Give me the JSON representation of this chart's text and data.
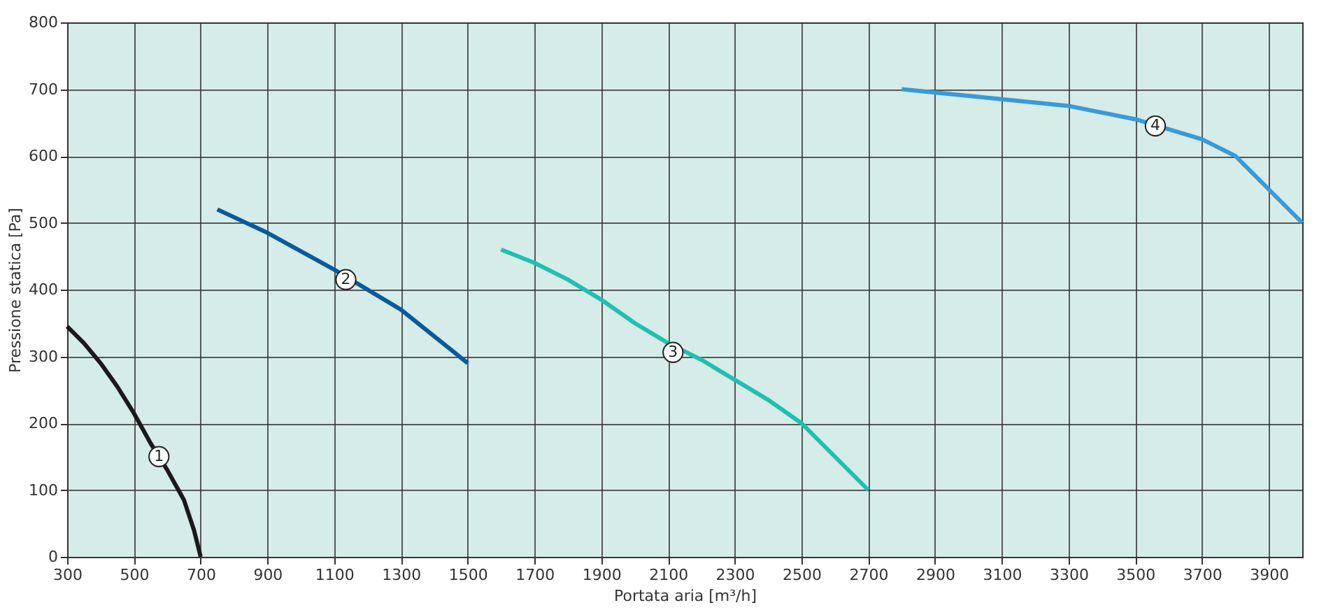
{
  "chart_data": {
    "type": "line",
    "xlabel": "Portata aria [m³/h]",
    "ylabel": "Pressione statica [Pa]",
    "xlim": [
      300,
      4000
    ],
    "xticks": [
      300,
      500,
      700,
      900,
      1100,
      1300,
      1500,
      1700,
      1900,
      2100,
      2300,
      2500,
      2700,
      2900,
      3100,
      3300,
      3500,
      3700,
      3900
    ],
    "ylim": [
      0,
      800
    ],
    "yticks": [
      0,
      100,
      200,
      300,
      400,
      500,
      600,
      700,
      800
    ],
    "grid": true,
    "legend": false,
    "marker": "none",
    "line_style": "solid",
    "series": [
      {
        "color": "#1a1a1a",
        "x": [
          300,
          350,
          400,
          450,
          500,
          550,
          600,
          650,
          680,
          700
        ],
        "values": [
          345,
          320,
          290,
          255,
          215,
          170,
          130,
          85,
          40,
          0
        ]
      },
      {
        "color": "#0a5a9c",
        "x": [
          750,
          900,
          1100,
          1300,
          1400,
          1500
        ],
        "values": [
          520,
          485,
          430,
          370,
          330,
          290
        ]
      },
      {
        "color": "#20c0b0",
        "x": [
          1600,
          1700,
          1800,
          1900,
          2000,
          2100,
          2200,
          2300,
          2400,
          2500,
          2600,
          2700
        ],
        "values": [
          460,
          440,
          415,
          385,
          350,
          320,
          295,
          265,
          235,
          200,
          150,
          100
        ]
      },
      {
        "color": "#3a9ad9",
        "x": [
          2800,
          3000,
          3300,
          3500,
          3700,
          3800,
          3900,
          4000
        ],
        "values": [
          700,
          690,
          675,
          655,
          625,
          600,
          550,
          500
        ]
      }
    ],
    "annotations": [
      {
        "text": "1",
        "x": 575,
        "y": 150
      },
      {
        "text": "2",
        "x": 1135,
        "y": 415
      },
      {
        "text": "3",
        "x": 2115,
        "y": 306
      },
      {
        "text": "4",
        "x": 3560,
        "y": 645
      }
    ]
  }
}
